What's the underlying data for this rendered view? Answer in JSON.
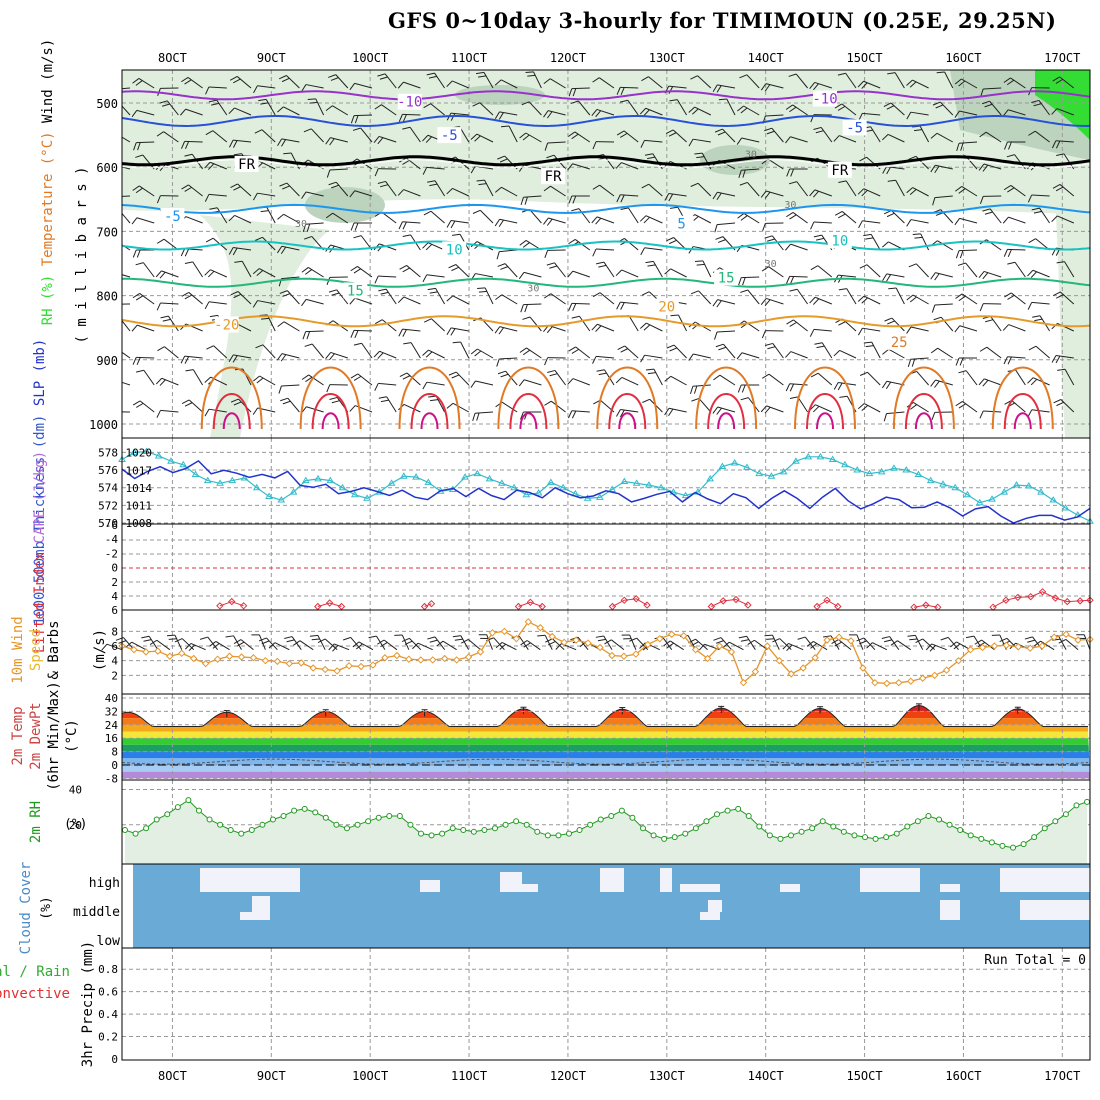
{
  "title": "GFS 0~10day 3-hourly for TIMIMOUN (0.25E, 29.25N)",
  "colors": {
    "rh_light": "#dfeedd",
    "rh_mid": "#bcd3bd",
    "rh_dark": "#9fb8a0",
    "rh_green": "#33dd33",
    "temp_violet": "#9932cc",
    "temp_blue": "#2851d8",
    "temp_sky": "#1e96ee",
    "temp_teal": "#17c2c0",
    "temp_green": "#22b77d",
    "temp_orange": "#e69a2a",
    "temp_dkorange": "#e07a26",
    "temp_red": "#e03040",
    "temp_magenta": "#cc1188",
    "thickness": "#33bbcc",
    "slp": "#2233cc",
    "lifted": "#e03040",
    "wind10": "#e6952a",
    "rh2m": "#229922",
    "cloud": "#6aaad6",
    "cloud_clear": "#f2f2fa"
  },
  "chart_data": {
    "type": "meteogram",
    "x_ticks": [
      "8OCT",
      "9OCT",
      "10OCT",
      "11OCT",
      "12OCT",
      "13OCT",
      "14OCT",
      "15OCT",
      "16OCT",
      "17OCT"
    ],
    "x_range_days": [
      7.49,
      17.28
    ],
    "panels": [
      {
        "id": "upper_air",
        "ylabel_parts": [
          "RH (%)",
          "Temperature (°C)",
          "Wind (m/s)"
        ],
        "ylabel_units": "( m i l l i b a r s )",
        "y_ticks": [
          500,
          600,
          700,
          800,
          900,
          1000
        ],
        "contour_labels": [
          {
            "text": "-10",
            "day": 10.4,
            "p": 498
          },
          {
            "text": "-10",
            "day": 14.6,
            "p": 493
          },
          {
            "text": "-5",
            "day": 10.8,
            "p": 550
          },
          {
            "text": "-5",
            "day": 14.9,
            "p": 538
          },
          {
            "text": "FR",
            "day": 8.75,
            "p": 595
          },
          {
            "text": "FR",
            "day": 11.85,
            "p": 614
          },
          {
            "text": "FR",
            "day": 14.75,
            "p": 604
          },
          {
            "text": "-5",
            "day": 8.0,
            "p": 676
          },
          {
            "text": "5",
            "day": 13.15,
            "p": 688
          },
          {
            "text": "10",
            "day": 10.85,
            "p": 728
          },
          {
            "text": "10",
            "day": 14.75,
            "p": 714
          },
          {
            "text": "15",
            "day": 9.85,
            "p": 792
          },
          {
            "text": "15",
            "day": 13.6,
            "p": 772
          },
          {
            "text": "-20",
            "day": 8.55,
            "p": 845
          },
          {
            "text": "20",
            "day": 13.0,
            "p": 817
          },
          {
            "text": "25",
            "day": 15.35,
            "p": 872
          },
          {
            "text": "30",
            "day": 13.85,
            "p": 577
          },
          {
            "text": "30",
            "day": 14.25,
            "p": 656
          },
          {
            "text": "30",
            "day": 9.3,
            "p": 685
          },
          {
            "text": "30",
            "day": 11.65,
            "p": 786
          },
          {
            "text": "30",
            "day": 14.05,
            "p": 748
          }
        ]
      },
      {
        "id": "thickness_slp",
        "ylabel_parts": [
          "1000-500mb Thickness (dm)",
          "SLP (mb)"
        ],
        "y_left_ticks": [
          570,
          572,
          574,
          576,
          578
        ],
        "y_right_ticks": [
          1008,
          1011,
          1014,
          1017,
          1020
        ],
        "series": [
          {
            "name": "1000-500mb Thickness",
            "units": "dm",
            "values": [
              577.2,
              578.0,
              578.1,
              577.6,
              577.0,
              576.6,
              575.5,
              574.8,
              574.5,
              574.8,
              575.1,
              574.0,
              573.0,
              572.6,
              573.5,
              574.8,
              575.0,
              574.8,
              574.0,
              573.2,
              572.8,
              573.5,
              574.5,
              575.3,
              575.2,
              574.6,
              573.6,
              573.8,
              575.2,
              575.6,
              575.0,
              574.5,
              574.0,
              573.2,
              573.4,
              574.6,
              574.0,
              573.3,
              572.8,
              572.9,
              573.8,
              574.7,
              574.5,
              574.3,
              574.0,
              573.5,
              573.1,
              573.5,
              575.0,
              576.4,
              576.8,
              576.3,
              575.6,
              575.3,
              575.8,
              577.0,
              577.5,
              577.5,
              577.2,
              576.6,
              576.0,
              575.6,
              575.8,
              576.2,
              576.0,
              575.5,
              574.8,
              574.4,
              574.0,
              573.2,
              572.3,
              572.7,
              573.5,
              574.3,
              574.2,
              573.5,
              572.6,
              571.7,
              570.9,
              570.2
            ]
          },
          {
            "name": "SLP",
            "units": "mb",
            "values": [
              1017.2,
              1015.6,
              1016.8,
              1017.6,
              1016.6,
              1017.3,
              1018.6,
              1016.4,
              1017.0,
              1016.5,
              1015.8,
              1016.3,
              1015.7,
              1016.8,
              1014.4,
              1014.1,
              1014.6,
              1013.0,
              1013.4,
              1014.0,
              1013.4,
              1012.7,
              1013.6,
              1012.4,
              1012.0,
              1013.5,
              1013.9,
              1012.5,
              1013.9,
              1012.7,
              1012.0,
              1013.6,
              1013.2,
              1012.3,
              1014.0,
              1013.0,
              1012.3,
              1012.6,
              1013.5,
              1013.0,
              1011.6,
              1012.2,
              1012.9,
              1013.4,
              1011.6,
              1013.2,
              1012.1,
              1011.3,
              1013.0,
              1012.3,
              1010.5,
              1012.2,
              1013.5,
              1012.2,
              1010.5,
              1012.4,
              1013.9,
              1011.8,
              1010.4,
              1011.3,
              1012.4,
              1012.0,
              1010.6,
              1010.7,
              1011.6,
              1010.6,
              1009.2,
              1010.4,
              1010.8,
              1009.2,
              1008.0,
              1008.8,
              1009.3,
              1009.3,
              1008.5,
              1009.0,
              1010.5
            ]
          }
        ]
      },
      {
        "id": "lifted_cape",
        "ylabel_parts": [
          "Lifted Index",
          "CAPE (J/kg)"
        ],
        "y_ticks": [
          "-6",
          "-4",
          "-2",
          "0",
          "2",
          "4",
          "6"
        ],
        "lifted_segments": [
          {
            "days": [
              8.48,
              8.6,
              8.72
            ],
            "values": [
              5.4,
              4.8,
              5.4
            ]
          },
          {
            "days": [
              9.47,
              9.59,
              9.71
            ],
            "values": [
              5.5,
              5.0,
              5.5
            ]
          },
          {
            "days": [
              10.55,
              10.62
            ],
            "values": [
              5.5,
              5.1
            ]
          },
          {
            "days": [
              11.5,
              11.62,
              11.74
            ],
            "values": [
              5.5,
              4.9,
              5.5
            ]
          },
          {
            "days": [
              12.45,
              12.57,
              12.69,
              12.8
            ],
            "values": [
              5.5,
              4.6,
              4.4,
              5.3
            ]
          },
          {
            "days": [
              13.45,
              13.57,
              13.7,
              13.82
            ],
            "values": [
              5.5,
              4.7,
              4.5,
              5.3
            ]
          },
          {
            "days": [
              14.52,
              14.62,
              14.73
            ],
            "values": [
              5.5,
              4.6,
              5.5
            ]
          },
          {
            "days": [
              15.5,
              15.62,
              15.74
            ],
            "values": [
              5.6,
              5.3,
              5.6
            ]
          },
          {
            "days": [
              16.3,
              16.43,
              16.55,
              16.68,
              16.8,
              16.93,
              17.05,
              17.18,
              17.28
            ],
            "values": [
              5.6,
              4.6,
              4.2,
              4.1,
              3.4,
              4.3,
              4.8,
              4.7,
              4.6
            ]
          }
        ]
      },
      {
        "id": "wind10m",
        "ylabel_parts": [
          "10m Wind",
          "Speed",
          "& Barbs",
          "(m/s)"
        ],
        "y_ticks": [
          2,
          4,
          6,
          8
        ],
        "series": [
          {
            "name": "10m Wind Speed",
            "units": "m/s",
            "values": [
              6.0,
              5.5,
              5.2,
              5.3,
              4.6,
              5.0,
              4.3,
              3.6,
              4.2,
              4.6,
              4.5,
              4.4,
              4.0,
              3.9,
              3.6,
              3.7,
              3.0,
              2.8,
              2.6,
              3.3,
              3.2,
              3.4,
              4.4,
              4.7,
              4.2,
              4.1,
              4.1,
              4.3,
              4.1,
              4.5,
              5.2,
              7.8,
              8.0,
              7.0,
              9.3,
              8.5,
              7.3,
              6.5,
              6.8,
              6.4,
              5.8,
              4.7,
              4.6,
              4.9,
              6.2,
              7.0,
              7.6,
              7.4,
              5.5,
              4.3,
              6.0,
              5.2,
              1.0,
              2.5,
              6.0,
              4.0,
              2.2,
              3.0,
              4.4,
              6.8,
              7.2,
              6.7,
              3.0,
              1.0,
              0.9,
              1.0,
              1.2,
              1.6,
              2.0,
              2.7,
              4.0,
              5.5,
              5.8,
              6.0,
              6.1,
              5.9,
              5.7,
              6.0,
              7.2,
              7.6,
              6.8,
              6.9
            ]
          }
        ]
      },
      {
        "id": "temp2m",
        "ylabel_parts": [
          "2m Temp",
          "2m DewPt",
          "(6hr Min/Max)",
          "(°C)"
        ],
        "y_ticks": [
          -8,
          0,
          8,
          16,
          24,
          32,
          40
        ],
        "temp_max_by_day": [
          31.5,
          32.0,
          32.0,
          33.5,
          33.3,
          34.0,
          33.8,
          35.5,
          33.5,
          33.0
        ],
        "temp_min": 23,
        "dewpoint_approx": 2,
        "bands": [
          {
            "min": 32,
            "max": 40,
            "color": "#d42020"
          },
          {
            "min": 28,
            "max": 32,
            "color": "#f04010"
          },
          {
            "min": 24,
            "max": 28,
            "color": "#f57a18"
          },
          {
            "min": 20,
            "max": 24,
            "color": "#f5a81c"
          },
          {
            "min": 16,
            "max": 20,
            "color": "#f4e63a"
          },
          {
            "min": 12,
            "max": 16,
            "color": "#33cc33"
          },
          {
            "min": 8,
            "max": 12,
            "color": "#1e9e64"
          },
          {
            "min": 4,
            "max": 8,
            "color": "#2a7ee8"
          },
          {
            "min": 0,
            "max": 4,
            "color": "#7fb6ee"
          },
          {
            "min": -4,
            "max": 0,
            "color": "#a8cdf4"
          },
          {
            "min": -8,
            "max": -4,
            "color": "#b48ad8"
          }
        ]
      },
      {
        "id": "rh2m",
        "ylabel_parts": [
          "2m RH",
          "(%)"
        ],
        "y_ticks": [
          20,
          40
        ],
        "series": [
          {
            "name": "2m RH",
            "units": "%",
            "values": [
              17,
              15,
              18,
              23,
              26,
              30,
              34,
              28,
              23,
              20,
              17,
              15,
              17,
              20,
              23,
              25,
              28,
              29,
              27,
              24,
              20,
              18,
              20,
              22,
              24,
              25,
              25,
              20,
              15,
              14,
              15,
              18,
              17,
              16,
              17,
              18,
              20,
              22,
              20,
              16,
              14,
              14,
              15,
              17,
              20,
              23,
              25,
              28,
              24,
              18,
              14,
              12,
              13,
              15,
              18,
              22,
              26,
              28,
              29,
              25,
              19,
              14,
              12,
              14,
              16,
              18,
              22,
              19,
              16,
              14,
              13,
              12,
              13,
              15,
              19,
              22,
              25,
              23,
              20,
              17,
              14,
              12,
              10,
              8,
              7,
              9,
              13,
              18,
              22,
              26,
              31,
              33
            ]
          }
        ]
      },
      {
        "id": "cloud",
        "ylabel_parts": [
          "Cloud Cover",
          "(%)"
        ],
        "levels": [
          "high",
          "middle",
          "low"
        ]
      },
      {
        "id": "precip",
        "ylabel_parts": [
          "Total / Rain",
          "Convective",
          "3hr Precip (mm)"
        ],
        "y_ticks": [
          "0",
          "0.2",
          "0.4",
          "0.6",
          "0.8"
        ],
        "run_total_label": "Run Total = 0"
      }
    ]
  }
}
